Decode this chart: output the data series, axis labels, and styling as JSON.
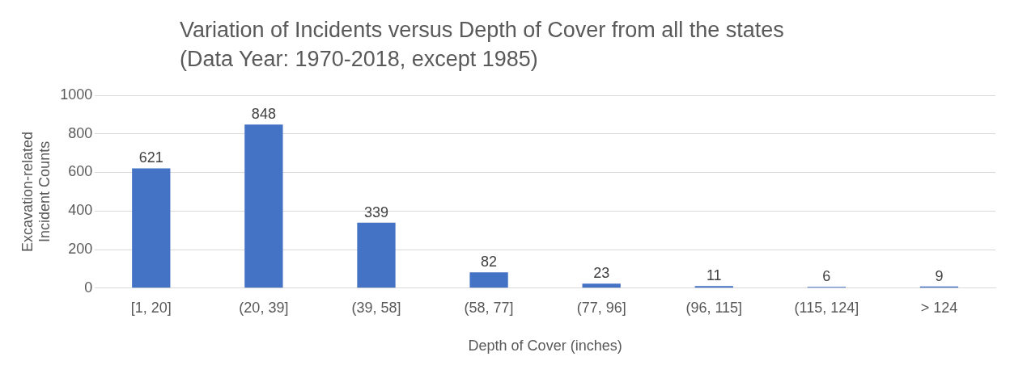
{
  "chart_data": {
    "type": "bar",
    "title": "Variation of Incidents versus Depth of Cover from all the states",
    "subtitle": "(Data Year: 1970-2018, except 1985)",
    "xlabel": "Depth of Cover (inches)",
    "ylabel": "Excavation-related Incident Counts",
    "categories": [
      "[1, 20]",
      "(20, 39]",
      "(39, 58]",
      "(58, 77]",
      "(77, 96]",
      "(96, 115]",
      "(115, 124]",
      "> 124"
    ],
    "values": [
      621,
      848,
      339,
      82,
      23,
      11,
      6,
      9
    ],
    "color": "#4472c4",
    "ylim": [
      0,
      1000
    ],
    "yticks": [
      0,
      200,
      400,
      600,
      800,
      1000
    ],
    "grid": "y",
    "data_labels": true,
    "legend": false
  }
}
